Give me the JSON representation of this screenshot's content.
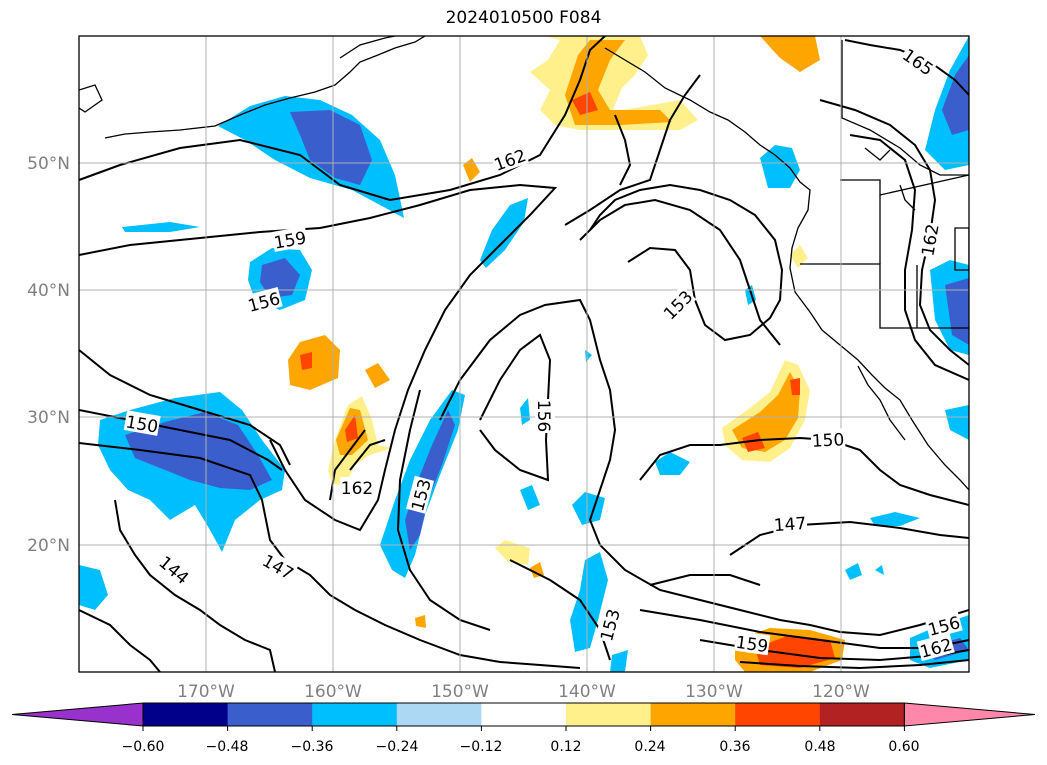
{
  "title": "2024010500 F084",
  "latitude_labels": [
    "50°N",
    "40°N",
    "30°N",
    "20°N"
  ],
  "longitude_labels": [
    "170°W",
    "160°W",
    "150°W",
    "140°W",
    "130°W",
    "120°W"
  ],
  "contour_labels": [
    "165",
    "162",
    "159",
    "156",
    "153",
    "156",
    "150",
    "150",
    "162",
    "153",
    "147",
    "144",
    "147",
    "153",
    "159",
    "156",
    "162",
    "162"
  ],
  "colorbar": {
    "tick_labels": [
      "−0.60",
      "−0.48",
      "−0.36",
      "−0.24",
      "−0.12",
      "0.12",
      "0.24",
      "0.36",
      "0.48",
      "0.60"
    ],
    "colors": [
      "#9932cc",
      "#00008b",
      "#3a5fcd",
      "#00bfff",
      "#add8f4",
      "#ffffff",
      "#fff08c",
      "#ffa500",
      "#ff4500",
      "#b22222",
      "#ff88aa"
    ]
  },
  "colors": {
    "grid": "#b0b0b0",
    "contour": "#000000",
    "coast": "#000000"
  }
}
